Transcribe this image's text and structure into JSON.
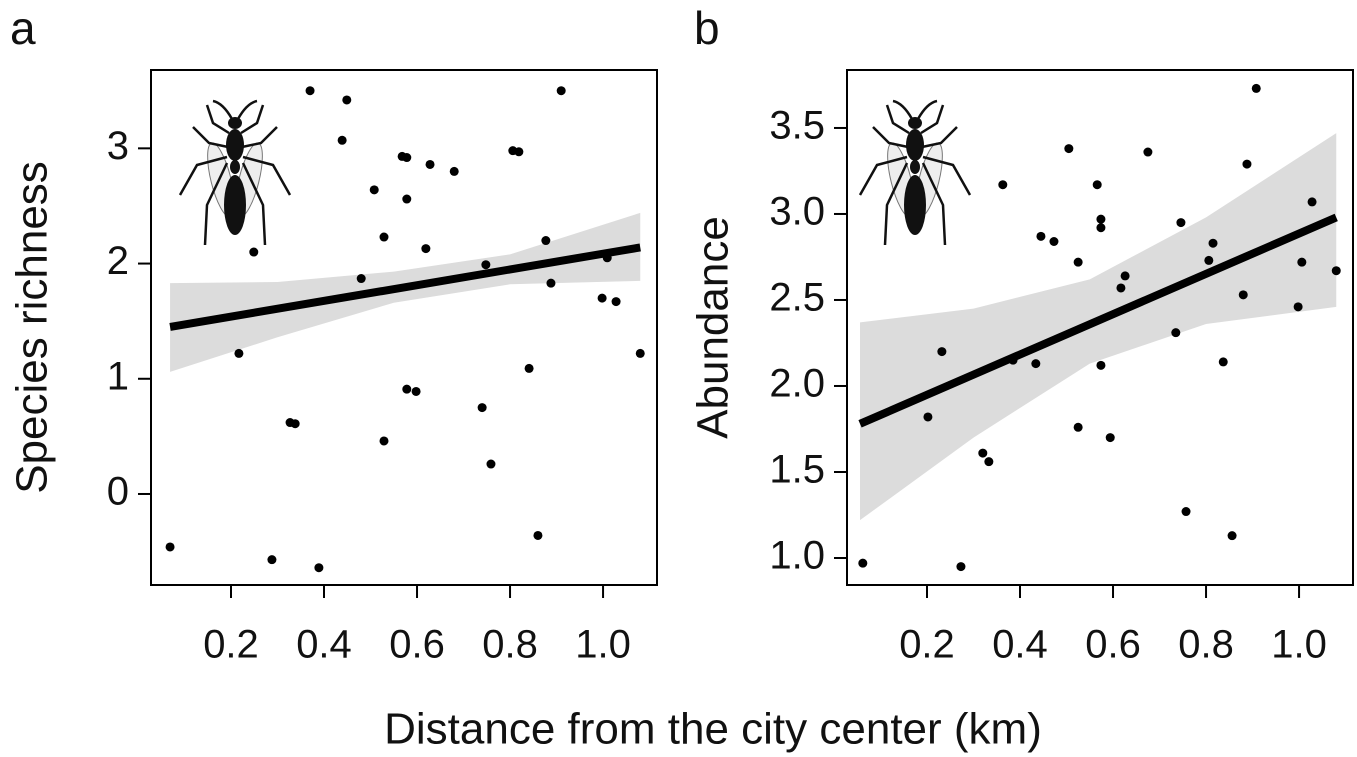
{
  "chart_data": [
    {
      "type": "scatter",
      "label": "a",
      "ylabel": "Species richness",
      "x": [
        0.069,
        0.217,
        0.249,
        0.288,
        0.327,
        0.338,
        0.37,
        0.389,
        0.439,
        0.449,
        0.48,
        0.508,
        0.529,
        0.529,
        0.568,
        0.578,
        0.578,
        0.578,
        0.598,
        0.619,
        0.628,
        0.68,
        0.74,
        0.748,
        0.759,
        0.806,
        0.819,
        0.841,
        0.86,
        0.877,
        0.888,
        0.91,
        0.998,
        1.009,
        1.028,
        1.08
      ],
      "y": [
        -0.46,
        1.22,
        2.1,
        -0.57,
        0.62,
        0.61,
        3.5,
        -0.64,
        3.07,
        3.42,
        1.87,
        2.64,
        2.23,
        0.46,
        2.93,
        2.92,
        2.56,
        0.91,
        0.89,
        2.13,
        2.86,
        2.8,
        0.75,
        1.99,
        0.26,
        2.98,
        2.97,
        1.09,
        -0.36,
        2.2,
        1.83,
        3.5,
        1.7,
        2.05,
        1.67,
        1.22
      ],
      "trend": {
        "x": [
          0.069,
          1.08
        ],
        "y": [
          1.45,
          2.14
        ]
      },
      "band": {
        "x": [
          0.069,
          0.3,
          0.55,
          0.8,
          1.08
        ],
        "upper": [
          1.83,
          1.84,
          1.93,
          2.08,
          2.44
        ],
        "lower": [
          1.06,
          1.36,
          1.66,
          1.82,
          1.85
        ]
      },
      "xlim": [
        0.028,
        1.116
      ],
      "ylim": [
        -0.79,
        3.68
      ],
      "xticks": [
        0.2,
        0.4,
        0.6,
        0.8,
        {
          "value": 1,
          "label": "1.0"
        }
      ],
      "yticks": [
        0,
        1,
        2,
        3
      ]
    },
    {
      "type": "scatter",
      "label": "b",
      "ylabel": "Abundance",
      "x": [
        0.062,
        0.202,
        0.232,
        0.273,
        0.32,
        0.333,
        0.363,
        0.385,
        0.434,
        0.445,
        0.473,
        0.505,
        0.525,
        0.525,
        0.566,
        0.574,
        0.574,
        0.574,
        0.594,
        0.617,
        0.626,
        0.675,
        0.735,
        0.746,
        0.757,
        0.806,
        0.815,
        0.837,
        0.856,
        0.88,
        0.888,
        0.908,
        0.998,
        1.006,
        1.028,
        1.08
      ],
      "y": [
        0.97,
        1.82,
        2.2,
        0.95,
        1.61,
        1.56,
        3.17,
        2.15,
        2.13,
        2.87,
        2.84,
        3.38,
        2.72,
        1.76,
        3.17,
        2.97,
        2.92,
        2.12,
        1.7,
        2.57,
        2.64,
        3.36,
        2.31,
        2.95,
        1.27,
        2.73,
        2.83,
        2.14,
        1.13,
        2.53,
        3.29,
        3.73,
        2.46,
        2.72,
        3.07,
        2.67
      ],
      "trend": {
        "x": [
          0.056,
          1.08
        ],
        "y": [
          1.78,
          2.98
        ]
      },
      "band": {
        "x": [
          0.056,
          0.3,
          0.55,
          0.8,
          1.08
        ],
        "upper": [
          2.37,
          2.45,
          2.62,
          2.98,
          3.47
        ],
        "lower": [
          1.22,
          1.7,
          2.13,
          2.36,
          2.46
        ]
      },
      "xlim": [
        0.028,
        1.116
      ],
      "ylim": [
        0.843,
        3.837
      ],
      "xticks": [
        0.2,
        0.4,
        0.6,
        0.8,
        {
          "value": 1,
          "label": "1.0"
        }
      ],
      "yticks": [
        {
          "value": 1,
          "label": "1.0"
        },
        1.5,
        {
          "value": 2,
          "label": "2.0"
        },
        2.5,
        {
          "value": 3,
          "label": "3.0"
        },
        3.5
      ]
    }
  ],
  "xlabel": "Distance from the city center (km)"
}
